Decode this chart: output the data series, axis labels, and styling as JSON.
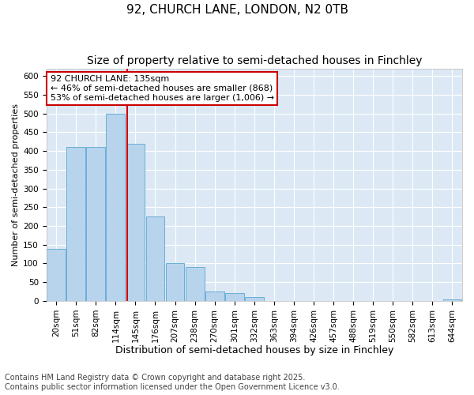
{
  "title1": "92, CHURCH LANE, LONDON, N2 0TB",
  "title2": "Size of property relative to semi-detached houses in Finchley",
  "xlabel": "Distribution of semi-detached houses by size in Finchley",
  "ylabel": "Number of semi-detached properties",
  "footnote": "Contains HM Land Registry data © Crown copyright and database right 2025.\nContains public sector information licensed under the Open Government Licence v3.0.",
  "categories": [
    "20sqm",
    "51sqm",
    "82sqm",
    "114sqm",
    "145sqm",
    "176sqm",
    "207sqm",
    "238sqm",
    "270sqm",
    "301sqm",
    "332sqm",
    "363sqm",
    "394sqm",
    "426sqm",
    "457sqm",
    "488sqm",
    "519sqm",
    "550sqm",
    "582sqm",
    "613sqm",
    "644sqm"
  ],
  "values": [
    140,
    410,
    410,
    500,
    420,
    225,
    100,
    90,
    25,
    20,
    10,
    0,
    0,
    0,
    0,
    0,
    0,
    0,
    0,
    0,
    5
  ],
  "bar_color": "#b8d4ed",
  "bar_edge_color": "#6aaed6",
  "property_line_label": "92 CHURCH LANE: 135sqm",
  "annotation_smaller": "← 46% of semi-detached houses are smaller (868)",
  "annotation_larger": "53% of semi-detached houses are larger (1,006) →",
  "line_color": "#cc0000",
  "annotation_box_edge": "#cc0000",
  "ylim": [
    0,
    620
  ],
  "yticks": [
    0,
    50,
    100,
    150,
    200,
    250,
    300,
    350,
    400,
    450,
    500,
    550,
    600
  ],
  "background_color": "#dce9f5",
  "grid_color": "#ffffff",
  "title1_fontsize": 11,
  "title2_fontsize": 10,
  "xlabel_fontsize": 9,
  "ylabel_fontsize": 8,
  "tick_fontsize": 7.5,
  "footnote_fontsize": 7,
  "annotation_fontsize": 8
}
